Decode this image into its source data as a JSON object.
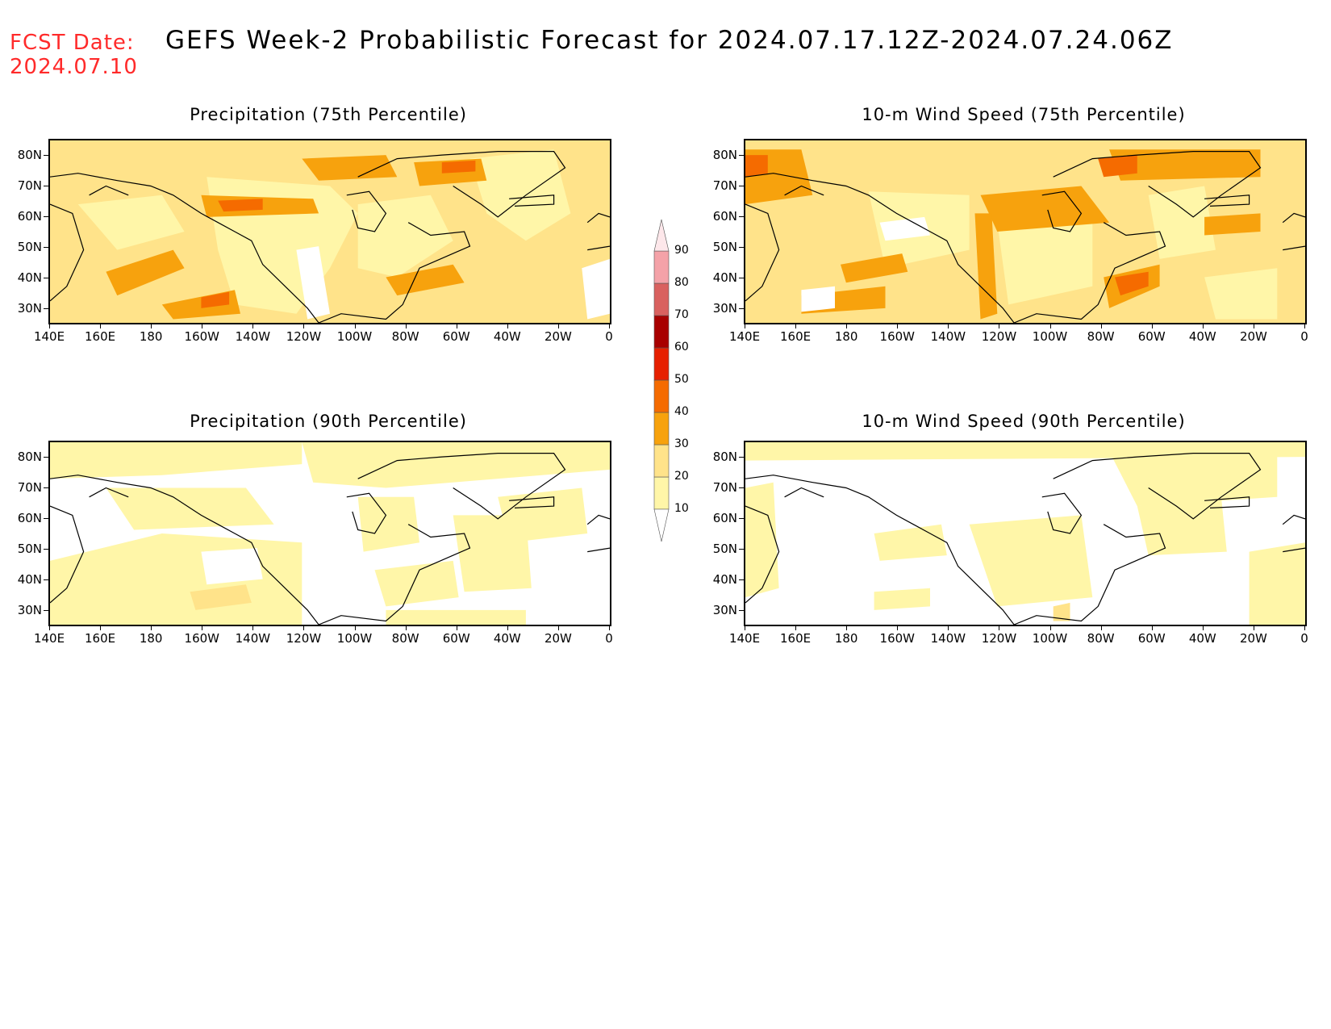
{
  "header": {
    "fcst_label": "FCST Date:",
    "fcst_date": "2024.07.10",
    "title": "GEFS Week-2 Probabilistic Forecast for 2024.07.17.12Z-2024.07.24.06Z"
  },
  "axes": {
    "lat_labels": [
      "80N",
      "70N",
      "60N",
      "50N",
      "40N",
      "30N"
    ],
    "lon_labels": [
      "140E",
      "160E",
      "180",
      "160W",
      "140W",
      "120W",
      "100W",
      "80W",
      "60W",
      "40W",
      "20W",
      "0"
    ]
  },
  "panels": [
    {
      "id": "precip-75",
      "title": "Precipitation (75th Percentile)"
    },
    {
      "id": "wind-75",
      "title": "10-m Wind Speed (75th Percentile)"
    },
    {
      "id": "precip-90",
      "title": "Precipitation (90th Percentile)"
    },
    {
      "id": "wind-90",
      "title": "10-m Wind Speed (90th Percentile)"
    }
  ],
  "colorbar": {
    "levels": [
      "10",
      "20",
      "30",
      "40",
      "50",
      "60",
      "70",
      "80",
      "90"
    ],
    "colors": [
      "#ffffff",
      "#fff6a8",
      "#ffe38a",
      "#f7a20d",
      "#f56b00",
      "#e62000",
      "#a80000",
      "#d9615f",
      "#f4a2a8",
      "#fde7ea"
    ]
  },
  "palette": {
    "light": "#fff6a8",
    "medium": "#ffe38a",
    "orange": "#f7a20d",
    "deep_orange": "#f56b00",
    "red": "#e62000"
  }
}
